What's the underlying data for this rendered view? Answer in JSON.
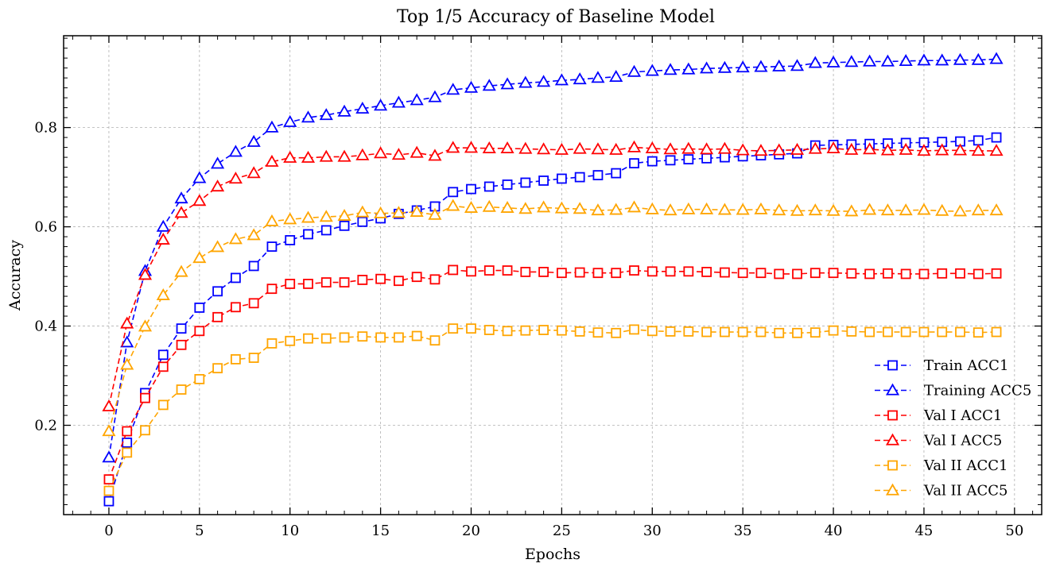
{
  "chart_data": {
    "type": "line",
    "title": "Top 1/5 Accuracy of Baseline Model",
    "xlabel": "Epochs",
    "ylabel": "Accuracy",
    "xlim": [
      -2.5,
      51.5
    ],
    "ylim": [
      0.02,
      0.985
    ],
    "xticks": [
      0,
      5,
      10,
      15,
      20,
      25,
      30,
      35,
      40,
      45,
      50
    ],
    "yticks": [
      0.2,
      0.4,
      0.6,
      0.8
    ],
    "xtick_labels": [
      "0",
      "5",
      "10",
      "15",
      "20",
      "25",
      "30",
      "35",
      "40",
      "45",
      "50"
    ],
    "ytick_labels": [
      "0.2",
      "0.4",
      "0.6",
      "0.8"
    ],
    "grid": true,
    "legend_position": "bottom-right",
    "x": [
      0,
      1,
      2,
      3,
      4,
      5,
      6,
      7,
      8,
      9,
      10,
      11,
      12,
      13,
      14,
      15,
      16,
      17,
      18,
      19,
      20,
      21,
      22,
      23,
      24,
      25,
      26,
      27,
      28,
      29,
      30,
      31,
      32,
      33,
      34,
      35,
      36,
      37,
      38,
      39,
      40,
      41,
      42,
      43,
      44,
      45,
      46,
      47,
      48,
      49
    ],
    "series": [
      {
        "name": "Train ACC1",
        "color": "#0000ff",
        "marker": "square",
        "values": [
          0.047,
          0.165,
          0.265,
          0.342,
          0.395,
          0.437,
          0.47,
          0.497,
          0.521,
          0.56,
          0.573,
          0.585,
          0.593,
          0.602,
          0.61,
          0.617,
          0.626,
          0.633,
          0.641,
          0.67,
          0.676,
          0.681,
          0.685,
          0.689,
          0.693,
          0.697,
          0.7,
          0.704,
          0.708,
          0.728,
          0.732,
          0.734,
          0.736,
          0.738,
          0.74,
          0.742,
          0.744,
          0.746,
          0.748,
          0.764,
          0.765,
          0.766,
          0.767,
          0.768,
          0.769,
          0.77,
          0.771,
          0.772,
          0.774,
          0.78
        ]
      },
      {
        "name": "Training ACC5",
        "color": "#0000ff",
        "marker": "triangle",
        "values": [
          0.135,
          0.367,
          0.511,
          0.6,
          0.657,
          0.698,
          0.727,
          0.751,
          0.771,
          0.8,
          0.811,
          0.82,
          0.825,
          0.832,
          0.838,
          0.844,
          0.85,
          0.855,
          0.861,
          0.876,
          0.88,
          0.884,
          0.887,
          0.89,
          0.892,
          0.895,
          0.897,
          0.9,
          0.902,
          0.912,
          0.914,
          0.916,
          0.917,
          0.919,
          0.92,
          0.921,
          0.922,
          0.923,
          0.924,
          0.93,
          0.931,
          0.932,
          0.933,
          0.933,
          0.934,
          0.935,
          0.935,
          0.936,
          0.936,
          0.938
        ]
      },
      {
        "name": "Val I ACC1",
        "color": "#ff0000",
        "marker": "square",
        "values": [
          0.091,
          0.188,
          0.255,
          0.318,
          0.362,
          0.39,
          0.418,
          0.438,
          0.446,
          0.475,
          0.485,
          0.485,
          0.488,
          0.488,
          0.493,
          0.495,
          0.491,
          0.499,
          0.494,
          0.513,
          0.51,
          0.512,
          0.512,
          0.509,
          0.509,
          0.507,
          0.508,
          0.507,
          0.507,
          0.512,
          0.51,
          0.51,
          0.51,
          0.509,
          0.508,
          0.507,
          0.507,
          0.505,
          0.505,
          0.507,
          0.507,
          0.506,
          0.505,
          0.506,
          0.505,
          0.505,
          0.506,
          0.506,
          0.505,
          0.506
        ]
      },
      {
        "name": "Val I ACC5",
        "color": "#ff0000",
        "marker": "triangle",
        "values": [
          0.238,
          0.405,
          0.503,
          0.574,
          0.628,
          0.652,
          0.681,
          0.697,
          0.708,
          0.731,
          0.739,
          0.739,
          0.741,
          0.741,
          0.744,
          0.748,
          0.745,
          0.749,
          0.743,
          0.759,
          0.759,
          0.758,
          0.758,
          0.757,
          0.756,
          0.755,
          0.757,
          0.756,
          0.755,
          0.76,
          0.758,
          0.756,
          0.757,
          0.756,
          0.757,
          0.754,
          0.753,
          0.754,
          0.755,
          0.757,
          0.758,
          0.755,
          0.756,
          0.754,
          0.755,
          0.753,
          0.754,
          0.754,
          0.753,
          0.753
        ]
      },
      {
        "name": "Val II ACC1",
        "color": "#ffa500",
        "marker": "square",
        "values": [
          0.068,
          0.145,
          0.19,
          0.241,
          0.272,
          0.293,
          0.315,
          0.333,
          0.336,
          0.365,
          0.37,
          0.375,
          0.375,
          0.377,
          0.379,
          0.377,
          0.377,
          0.38,
          0.371,
          0.395,
          0.395,
          0.392,
          0.39,
          0.391,
          0.392,
          0.391,
          0.389,
          0.387,
          0.386,
          0.393,
          0.39,
          0.389,
          0.389,
          0.388,
          0.388,
          0.388,
          0.388,
          0.386,
          0.386,
          0.387,
          0.391,
          0.389,
          0.388,
          0.388,
          0.388,
          0.388,
          0.388,
          0.388,
          0.387,
          0.388
        ]
      },
      {
        "name": "Val II ACC5",
        "color": "#ffa500",
        "marker": "triangle",
        "values": [
          0.188,
          0.322,
          0.399,
          0.462,
          0.509,
          0.537,
          0.559,
          0.575,
          0.583,
          0.611,
          0.615,
          0.618,
          0.62,
          0.622,
          0.629,
          0.627,
          0.628,
          0.63,
          0.624,
          0.642,
          0.638,
          0.64,
          0.638,
          0.636,
          0.639,
          0.637,
          0.636,
          0.633,
          0.634,
          0.639,
          0.635,
          0.633,
          0.635,
          0.635,
          0.634,
          0.634,
          0.635,
          0.633,
          0.632,
          0.633,
          0.632,
          0.631,
          0.634,
          0.633,
          0.633,
          0.634,
          0.632,
          0.631,
          0.633,
          0.633
        ]
      }
    ]
  }
}
